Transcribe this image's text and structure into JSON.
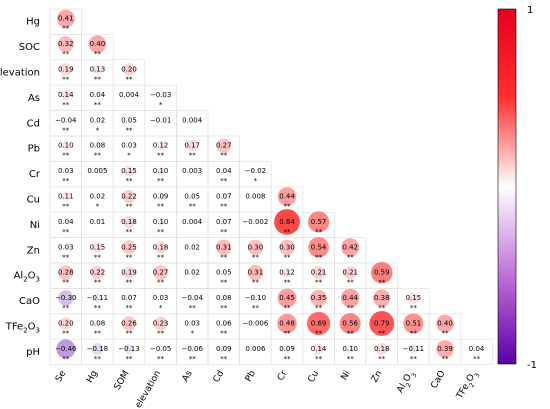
{
  "chart_data": {
    "type": "heatmap",
    "variables": [
      "Se",
      "Hg",
      "SOC",
      "elevation",
      "As",
      "Cd",
      "Pb",
      "Cr",
      "Cu",
      "Ni",
      "Zn",
      "Al2O3",
      "CaO",
      "TFe2O3",
      "pH"
    ],
    "row_labels": [
      "Hg",
      "SOC",
      "elevation",
      "As",
      "Cd",
      "Pb",
      "Cr",
      "Cu",
      "Ni",
      "Zn",
      "Al2O3",
      "CaO",
      "TFe2O3",
      "pH"
    ],
    "col_labels": [
      "Se",
      "Hg",
      "SOM",
      "elevation",
      "As",
      "Cd",
      "Pb",
      "Cr",
      "Cu",
      "Ni",
      "Zn",
      "Al2O3",
      "CaO",
      "TFe2O3"
    ],
    "matrix": [
      [
        0.41
      ],
      [
        0.32,
        0.4
      ],
      [
        0.19,
        0.13,
        0.2
      ],
      [
        0.14,
        0.04,
        0.004,
        -0.03
      ],
      [
        -0.04,
        0.02,
        0.05,
        -0.01,
        0.004
      ],
      [
        0.1,
        0.08,
        0.03,
        0.12,
        0.17,
        0.27
      ],
      [
        0.03,
        0.005,
        0.15,
        0.1,
        0.003,
        0.04,
        -0.02
      ],
      [
        0.11,
        0.02,
        0.22,
        0.09,
        0.05,
        0.07,
        0.008,
        0.44
      ],
      [
        0.04,
        0.01,
        0.18,
        0.1,
        0.004,
        0.07,
        -0.002,
        0.84,
        0.57
      ],
      [
        0.03,
        0.15,
        0.25,
        0.18,
        0.02,
        0.31,
        0.3,
        0.3,
        0.54,
        0.42
      ],
      [
        0.28,
        0.22,
        0.19,
        0.27,
        0.02,
        0.05,
        0.31,
        0.12,
        0.21,
        0.21,
        0.59
      ],
      [
        -0.3,
        -0.11,
        0.07,
        0.03,
        -0.04,
        0.08,
        -0.1,
        0.45,
        0.35,
        0.44,
        0.38,
        0.15
      ],
      [
        0.2,
        0.08,
        0.26,
        0.23,
        0.03,
        0.06,
        -0.006,
        0.48,
        0.69,
        0.56,
        0.79,
        0.51,
        0.4
      ],
      [
        -0.46,
        -0.18,
        -0.13,
        -0.05,
        -0.06,
        0.09,
        0.006,
        0.09,
        0.14,
        0.1,
        0.18,
        -0.11,
        0.39,
        0.04
      ]
    ],
    "stars": [
      [
        "**"
      ],
      [
        "**",
        "**"
      ],
      [
        "**",
        "**",
        "**"
      ],
      [
        "**",
        "**",
        "",
        "*"
      ],
      [
        "**",
        "*",
        "**",
        "",
        ""
      ],
      [
        "**",
        "**",
        "*",
        "**",
        "**",
        "**"
      ],
      [
        "**",
        "",
        "**",
        "**",
        "",
        "**",
        "*"
      ],
      [
        "**",
        "*",
        "**",
        "**",
        "**",
        "**",
        "",
        "**"
      ],
      [
        "**",
        "",
        "**",
        "**",
        "",
        "**",
        "",
        "**",
        "**"
      ],
      [
        "**",
        "**",
        "**",
        "**",
        "",
        "**",
        "**",
        "**",
        "**",
        "**"
      ],
      [
        "**",
        "**",
        "**",
        "**",
        "",
        "**",
        "**",
        "**",
        "**",
        "**",
        "**"
      ],
      [
        "**",
        "**",
        "**",
        "*",
        "**",
        "**",
        "**",
        "**",
        "**",
        "**",
        "**",
        "**"
      ],
      [
        "**",
        "**",
        "**",
        "**",
        "*",
        "**",
        "",
        "**",
        "**",
        "**",
        "**",
        "**",
        "**"
      ],
      [
        "**",
        "**",
        "**",
        "**",
        "**",
        "**",
        "",
        "**",
        "**",
        "**",
        "**",
        "**",
        "**",
        "**"
      ]
    ],
    "colorbar": {
      "ticks": [
        "1",
        "-1"
      ],
      "range": [
        -1,
        1
      ]
    },
    "colors": {
      "positive": "#ff0000",
      "neutral": "#ffffff",
      "negative": "#5500aa",
      "grid": "#dddddd"
    }
  }
}
